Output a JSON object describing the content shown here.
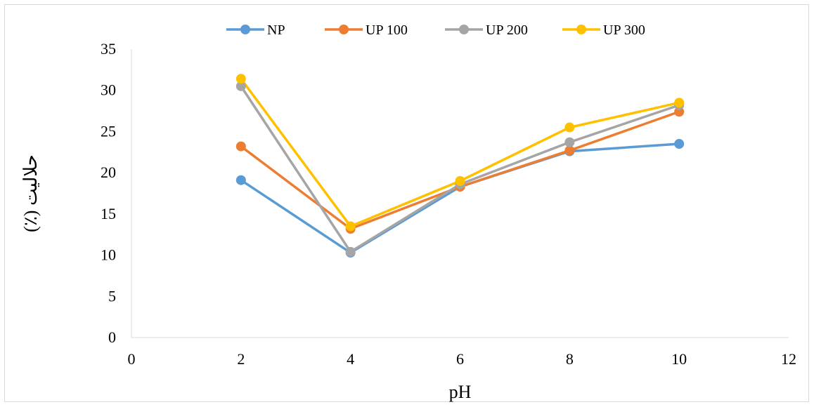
{
  "chart_data": {
    "type": "line",
    "xlabel": "pH",
    "ylabel": "حلالیت (٪)",
    "xlim": [
      0,
      12
    ],
    "ylim": [
      0,
      35
    ],
    "xticks": [
      0,
      2,
      4,
      6,
      8,
      10,
      12
    ],
    "yticks": [
      0,
      5,
      10,
      15,
      20,
      25,
      30,
      35
    ],
    "grid": false,
    "legend_position": "top",
    "x": [
      2,
      4,
      6,
      8,
      10
    ],
    "series": [
      {
        "name": "NP",
        "color": "#5b9bd5",
        "values": [
          19.1,
          10.3,
          18.3,
          22.6,
          23.5
        ]
      },
      {
        "name": "UP 100",
        "color": "#ed7d31",
        "values": [
          23.2,
          13.2,
          18.3,
          22.7,
          27.4
        ]
      },
      {
        "name": "UP 200",
        "color": "#a5a5a5",
        "values": [
          30.5,
          10.4,
          18.6,
          23.7,
          28.2
        ]
      },
      {
        "name": "UP 300",
        "color": "#ffc000",
        "values": [
          31.4,
          13.5,
          19.0,
          25.5,
          28.5
        ]
      }
    ]
  }
}
